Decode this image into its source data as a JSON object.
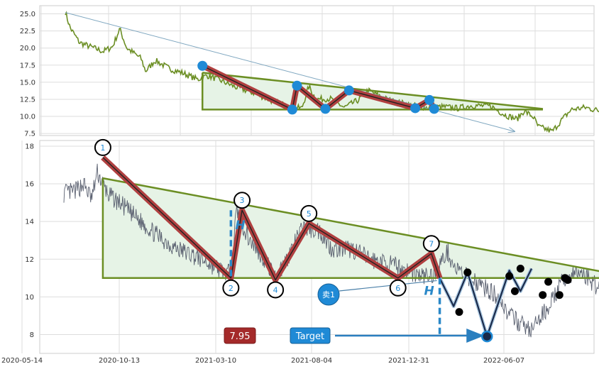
{
  "chart_data": [
    {
      "type": "line",
      "panel": "top",
      "ylim": [
        7.2,
        26.2
      ],
      "yticks": [
        "7.5",
        "10.0",
        "12.5",
        "15.0",
        "17.5",
        "20.0",
        "22.5",
        "25.0"
      ],
      "grid": true,
      "colors": {
        "price": "#6b8e23",
        "zigzag": "#b04040",
        "marker": "#1f8ad6",
        "triangle": "#6b8e23",
        "fill": "#e6f3e6",
        "trend_arrow": "#7fa7c0"
      },
      "price_keypoints": [
        [
          0,
          25.3
        ],
        [
          0.01,
          23
        ],
        [
          0.03,
          20.8
        ],
        [
          0.08,
          19.5
        ],
        [
          0.1,
          20.2
        ],
        [
          0.115,
          22.8
        ],
        [
          0.13,
          20
        ],
        [
          0.16,
          18.5
        ],
        [
          0.17,
          16.6
        ],
        [
          0.19,
          18.2
        ],
        [
          0.22,
          17
        ],
        [
          0.25,
          16.3
        ],
        [
          0.28,
          15.4
        ],
        [
          0.3,
          16
        ],
        [
          0.33,
          15.2
        ],
        [
          0.36,
          14.3
        ],
        [
          0.4,
          13.4
        ],
        [
          0.44,
          12.2
        ],
        [
          0.48,
          11.3
        ],
        [
          0.5,
          11.2
        ],
        [
          0.515,
          14.4
        ],
        [
          0.53,
          12.5
        ],
        [
          0.56,
          12.6
        ],
        [
          0.59,
          11.3
        ],
        [
          0.62,
          12.4
        ],
        [
          0.64,
          13.8
        ],
        [
          0.68,
          12.5
        ],
        [
          0.72,
          11.8
        ],
        [
          0.76,
          11.3
        ],
        [
          0.8,
          11.4
        ],
        [
          0.83,
          11.2
        ],
        [
          0.86,
          11.6
        ],
        [
          0.9,
          11.5
        ],
        [
          0.93,
          10.2
        ],
        [
          0.955,
          9.6
        ],
        [
          0.97,
          10.8
        ],
        [
          0.99,
          9.9
        ],
        [
          1,
          8.5
        ],
        [
          1.03,
          7.8
        ],
        [
          1.05,
          9.5
        ],
        [
          1.07,
          11
        ],
        [
          1.1,
          11.3
        ],
        [
          1.13,
          10.8
        ],
        [
          1.15,
          10.6
        ],
        [
          1.17,
          10.9
        ]
      ],
      "zigzag_points": [
        [
          0.29,
          17.4
        ],
        [
          0.48,
          11
        ],
        [
          0.49,
          14.5
        ],
        [
          0.55,
          11.1
        ],
        [
          0.6,
          13.8
        ],
        [
          0.74,
          11.2
        ],
        [
          0.77,
          12.4
        ],
        [
          0.78,
          11.1
        ]
      ],
      "triangle": [
        [
          0.29,
          16.4
        ],
        [
          0.29,
          11
        ],
        [
          1.01,
          11
        ],
        [
          1.01,
          11.1
        ]
      ],
      "trend_arrow": [
        [
          0,
          25.2
        ],
        [
          0.95,
          7.8
        ]
      ]
    },
    {
      "type": "line",
      "panel": "bottom",
      "ylim": [
        7,
        18.3
      ],
      "yticks": [
        "8",
        "10",
        "12",
        "14",
        "16",
        "18"
      ],
      "x_tick_labels": [
        "2020-05-14",
        "2020-10-13",
        "2021-03-10",
        "2021-08-04",
        "2021-12-31",
        "2022-06-07"
      ],
      "grid": true,
      "colors": {
        "price": "#5a6070",
        "zigzag": "#b04040",
        "circle": "#000000",
        "label": "#1f8ad6",
        "triangle": "#6b8e23",
        "fill": "#e6f3e6",
        "dash": "#2a88c8",
        "recent": "#1a2a4a",
        "dot": "#000000"
      },
      "price_keypoints": [
        [
          0,
          15.5
        ],
        [
          0.02,
          15.6
        ],
        [
          0.035,
          16
        ],
        [
          0.05,
          15.2
        ],
        [
          0.06,
          16.6
        ],
        [
          0.08,
          15.4
        ],
        [
          0.1,
          15
        ],
        [
          0.13,
          14.2
        ],
        [
          0.17,
          13.2
        ],
        [
          0.2,
          12.6
        ],
        [
          0.24,
          12.1
        ],
        [
          0.27,
          11.6
        ],
        [
          0.29,
          11.3
        ],
        [
          0.3,
          11.2
        ],
        [
          0.31,
          14.6
        ],
        [
          0.33,
          13.2
        ],
        [
          0.36,
          12
        ],
        [
          0.38,
          11
        ],
        [
          0.4,
          12
        ],
        [
          0.43,
          13.7
        ],
        [
          0.46,
          13.5
        ],
        [
          0.48,
          12.6
        ],
        [
          0.52,
          12.5
        ],
        [
          0.55,
          12
        ],
        [
          0.6,
          11.6
        ],
        [
          0.64,
          11.1
        ],
        [
          0.66,
          11.1
        ],
        [
          0.69,
          12.4
        ],
        [
          0.7,
          11.6
        ],
        [
          0.72,
          11.1
        ],
        [
          0.74,
          10.8
        ],
        [
          0.76,
          10.4
        ],
        [
          0.78,
          10
        ],
        [
          0.8,
          9
        ],
        [
          0.82,
          8.6
        ],
        [
          0.84,
          8.2
        ],
        [
          0.87,
          9.5
        ],
        [
          0.9,
          11
        ],
        [
          0.93,
          11.3
        ],
        [
          0.96,
          10.5
        ],
        [
          0.98,
          10.9
        ],
        [
          1,
          11
        ]
      ],
      "zigzag_points": [
        [
          0.07,
          17.4
        ],
        [
          0.3,
          11
        ],
        [
          0.32,
          14.6
        ],
        [
          0.38,
          10.9
        ],
        [
          0.44,
          13.9
        ],
        [
          0.6,
          11
        ],
        [
          0.66,
          12.3
        ],
        [
          0.675,
          11
        ]
      ],
      "pivots": [
        {
          "label": "1",
          "t": 0.07,
          "v": 17.4,
          "pos": "above"
        },
        {
          "label": "2",
          "t": 0.3,
          "v": 11,
          "pos": "below"
        },
        {
          "label": "3",
          "t": 0.32,
          "v": 14.6,
          "pos": "above"
        },
        {
          "label": "4",
          "t": 0.38,
          "v": 10.9,
          "pos": "below"
        },
        {
          "label": "5",
          "t": 0.44,
          "v": 13.9,
          "pos": "above"
        },
        {
          "label": "6",
          "t": 0.6,
          "v": 11,
          "pos": "below"
        },
        {
          "label": "7",
          "t": 0.66,
          "v": 12.3,
          "pos": "above"
        }
      ],
      "triangle": [
        [
          0.07,
          16.3
        ],
        [
          0.07,
          11
        ],
        [
          1.01,
          11
        ],
        [
          1.01,
          11.1
        ]
      ],
      "recent_zigzag": [
        [
          0.675,
          11
        ],
        [
          0.7,
          9.5
        ],
        [
          0.725,
          11.3
        ],
        [
          0.76,
          7.9
        ],
        [
          0.8,
          11.4
        ],
        [
          0.82,
          10.3
        ],
        [
          0.84,
          11.5
        ]
      ],
      "dots": [
        [
          0.71,
          9.2
        ],
        [
          0.725,
          11.3
        ],
        [
          0.8,
          11.1
        ],
        [
          0.81,
          10.3
        ],
        [
          0.82,
          11.5
        ],
        [
          0.86,
          10.1
        ],
        [
          0.87,
          10.8
        ],
        [
          0.89,
          10.1
        ],
        [
          0.9,
          11
        ],
        [
          0.905,
          10.9
        ]
      ],
      "target_point": [
        0.76,
        7.9
      ],
      "stop_label": "7.95",
      "target_label": "Target",
      "sell_label": "卖1",
      "sell_point": [
        0.675,
        10.9
      ],
      "height_label": "H",
      "height_label_2": "H",
      "height_bar_1": [
        0.3,
        10.9,
        14.6
      ],
      "height_bar_2": [
        0.675,
        8,
        11
      ]
    }
  ]
}
